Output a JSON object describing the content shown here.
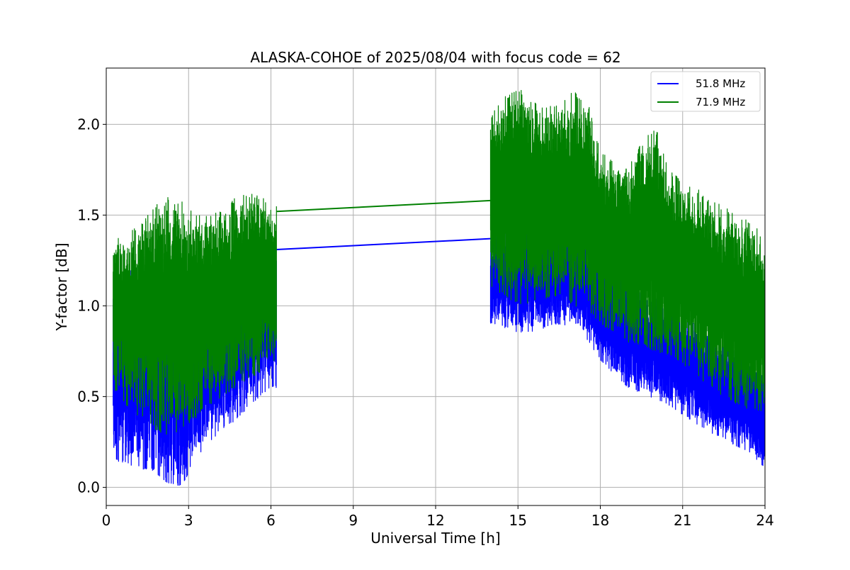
{
  "chart_data": {
    "type": "line",
    "title": "ALASKA-COHOE of 2025/08/04 with focus code = 62",
    "xlabel": "Universal Time [h]",
    "ylabel": "Y-factor [dB]",
    "xlim": [
      0,
      24
    ],
    "ylim": [
      -0.1,
      2.31
    ],
    "xticks": [
      0,
      3,
      6,
      9,
      12,
      15,
      18,
      21,
      24
    ],
    "xtick_labels": [
      "0",
      "3",
      "6",
      "9",
      "12",
      "15",
      "18",
      "21",
      "24"
    ],
    "yticks": [
      0.0,
      0.5,
      1.0,
      1.5,
      2.0
    ],
    "ytick_labels": [
      "0.0",
      "0.5",
      "1.0",
      "1.5",
      "2.0"
    ],
    "grid": true,
    "legend_position": "top-right",
    "series": [
      {
        "name": "51.8 MHz",
        "color": "#0000ff",
        "segments": [
          {
            "x": [
              0.25,
              0.75,
              1.25,
              1.75,
              2.25,
              2.75,
              3.25,
              3.75,
              4.25,
              4.75,
              5.25,
              5.75,
              6.2
            ],
            "y_low": [
              0.15,
              0.12,
              0.1,
              0.08,
              0.02,
              0.0,
              0.15,
              0.25,
              0.32,
              0.37,
              0.45,
              0.52,
              0.55
            ],
            "y_high": [
              1.15,
              1.2,
              1.22,
              1.25,
              1.2,
              1.15,
              1.18,
              1.2,
              1.25,
              1.27,
              1.3,
              1.3,
              1.3
            ]
          },
          {
            "x": [
              14.0,
              14.5,
              15.0,
              15.5,
              16.0,
              16.5,
              17.0,
              17.5,
              18.0,
              18.5,
              19.0,
              19.5,
              20.0,
              20.5,
              21.0,
              21.5,
              22.0,
              22.5,
              23.0,
              23.5,
              24.0
            ],
            "y_low": [
              0.9,
              0.88,
              0.85,
              0.85,
              0.88,
              0.9,
              0.88,
              0.82,
              0.7,
              0.62,
              0.55,
              0.52,
              0.48,
              0.45,
              0.4,
              0.35,
              0.3,
              0.27,
              0.22,
              0.18,
              0.1
            ],
            "y_high": [
              1.38,
              1.45,
              1.5,
              1.5,
              1.5,
              1.48,
              1.45,
              1.4,
              1.3,
              1.22,
              1.15,
              1.1,
              1.05,
              1.0,
              0.95,
              0.9,
              0.85,
              0.8,
              0.75,
              0.7,
              0.6
            ]
          }
        ],
        "bridge": {
          "x": [
            6.2,
            14.0
          ],
          "y": [
            1.31,
            1.37
          ]
        }
      },
      {
        "name": "71.9 MHz",
        "color": "#008000",
        "segments": [
          {
            "x": [
              0.25,
              0.75,
              1.25,
              1.75,
              2.25,
              2.75,
              3.25,
              3.75,
              4.25,
              4.75,
              5.25,
              5.75,
              6.2
            ],
            "y_low": [
              0.55,
              0.45,
              0.38,
              0.32,
              0.28,
              0.32,
              0.38,
              0.45,
              0.5,
              0.55,
              0.6,
              0.65,
              0.7
            ],
            "y_high": [
              1.38,
              1.4,
              1.45,
              1.55,
              1.6,
              1.58,
              1.5,
              1.52,
              1.55,
              1.6,
              1.62,
              1.6,
              1.55
            ]
          },
          {
            "x": [
              14.0,
              14.5,
              15.0,
              15.5,
              16.0,
              16.5,
              17.0,
              17.5,
              18.0,
              18.5,
              19.0,
              19.5,
              20.0,
              20.5,
              21.0,
              21.5,
              22.0,
              22.5,
              23.0,
              23.5,
              24.0
            ],
            "y_low": [
              1.1,
              1.05,
              1.0,
              1.02,
              1.03,
              1.05,
              1.0,
              0.98,
              0.9,
              0.85,
              0.8,
              0.78,
              0.75,
              0.72,
              0.68,
              0.62,
              0.55,
              0.5,
              0.45,
              0.42,
              0.4
            ],
            "y_high": [
              2.05,
              2.15,
              2.2,
              2.15,
              2.1,
              2.12,
              2.18,
              2.15,
              1.85,
              1.8,
              1.78,
              1.9,
              2.0,
              1.75,
              1.7,
              1.65,
              1.58,
              1.55,
              1.5,
              1.48,
              1.35
            ]
          }
        ],
        "bridge": {
          "x": [
            6.2,
            14.0
          ],
          "y": [
            1.52,
            1.58
          ]
        }
      }
    ]
  }
}
